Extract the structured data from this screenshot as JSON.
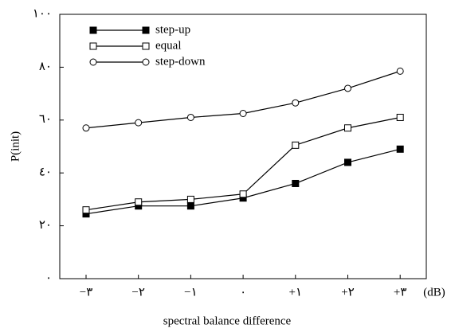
{
  "chart_data": {
    "type": "line",
    "x_label": "spectral balance difference",
    "x_unit": "(dB)",
    "y_label": "P(init)",
    "categories": [
      "−٣",
      "−٢",
      "−١",
      "٠",
      "+١",
      "+٢",
      "+٣"
    ],
    "ylim": [
      0,
      100
    ],
    "yticks": [
      {
        "value": 0,
        "label": "٠"
      },
      {
        "value": 20,
        "label": "٢٠"
      },
      {
        "value": 40,
        "label": "٤٠"
      },
      {
        "value": 60,
        "label": "٦٠"
      },
      {
        "value": 80,
        "label": "٨٠"
      },
      {
        "value": 100,
        "label": "١٠٠"
      }
    ],
    "legend": "top-left",
    "series": [
      {
        "name": "step-up",
        "color": "#000000",
        "marker": "filled-square",
        "values": [
          24.5,
          27.5,
          27.5,
          30.5,
          36,
          44,
          49
        ]
      },
      {
        "name": "equal",
        "color": "#000000",
        "marker": "open-square",
        "values": [
          26,
          29,
          30,
          32,
          50.5,
          57,
          61
        ]
      },
      {
        "name": "step-down",
        "color": "#000000",
        "marker": "open-circle",
        "values": [
          57,
          59,
          61,
          62.5,
          66.5,
          72,
          78.5
        ]
      }
    ]
  }
}
